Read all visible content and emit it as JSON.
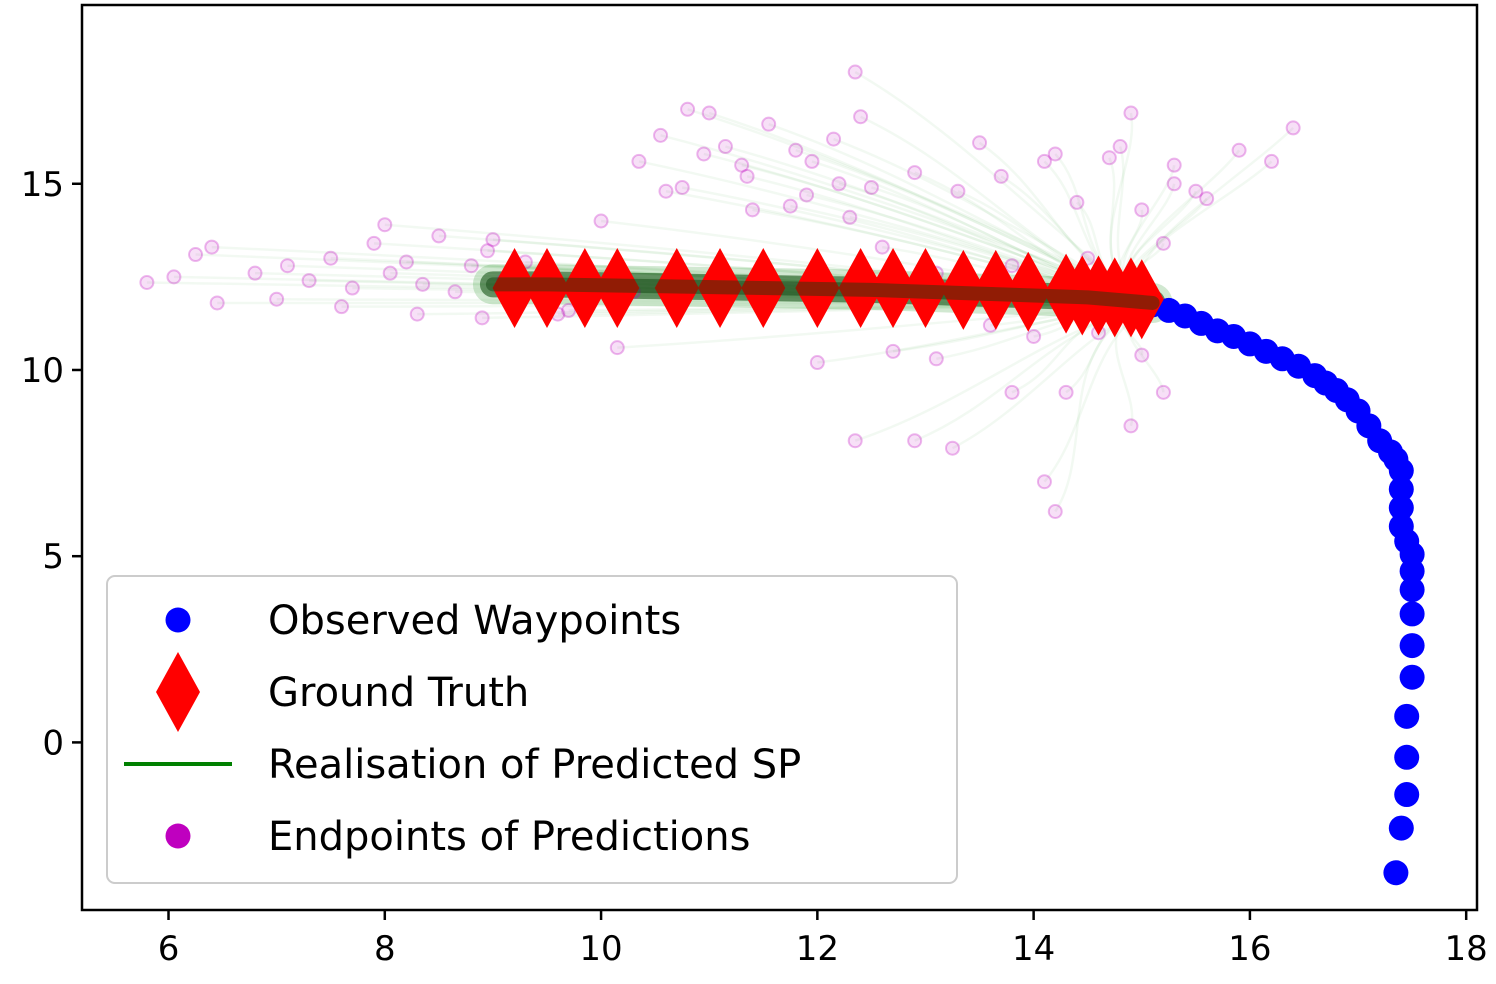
{
  "chart_data": {
    "type": "scatter",
    "title": "",
    "xlabel": "",
    "ylabel": "",
    "xlim": [
      5.2,
      18.1
    ],
    "ylim": [
      -4.5,
      19.8
    ],
    "xticks": [
      6,
      8,
      10,
      12,
      14,
      16,
      18
    ],
    "yticks": [
      0,
      5,
      10,
      15
    ],
    "grid": false,
    "legend_position": "lower-left",
    "colors": {
      "observed": "#0000ff",
      "ground_truth": "#ff0000",
      "prediction_line": "#008000",
      "endpoint": "#bf00bf"
    },
    "series": [
      {
        "name": "Observed Waypoints",
        "marker": "circle",
        "x": [
          17.35,
          17.4,
          17.45,
          17.45,
          17.45,
          17.5,
          17.5,
          17.5,
          17.5,
          17.5,
          17.5,
          17.45,
          17.4,
          17.4,
          17.4,
          17.4,
          17.35,
          17.3,
          17.2,
          17.1,
          17.0,
          16.9,
          16.8,
          16.7,
          16.6,
          16.45,
          16.3,
          16.15,
          16.0,
          15.85,
          15.7,
          15.55,
          15.4,
          15.25,
          15.1
        ],
        "y": [
          -3.5,
          -2.3,
          -1.4,
          -0.4,
          0.7,
          1.75,
          2.6,
          3.45,
          4.1,
          4.6,
          5.05,
          5.4,
          5.8,
          6.3,
          6.8,
          7.3,
          7.6,
          7.8,
          8.1,
          8.5,
          8.9,
          9.2,
          9.45,
          9.65,
          9.85,
          10.1,
          10.3,
          10.5,
          10.7,
          10.9,
          11.05,
          11.25,
          11.45,
          11.6,
          11.75
        ]
      },
      {
        "name": "Ground Truth",
        "marker": "diamond",
        "x": [
          9.2,
          9.5,
          9.85,
          10.15,
          10.7,
          11.1,
          11.5,
          12.0,
          12.4,
          12.7,
          13.0,
          13.35,
          13.65,
          13.95,
          14.3,
          14.45,
          14.6,
          14.75,
          14.9,
          15.0
        ],
        "y": [
          12.2,
          12.2,
          12.2,
          12.2,
          12.2,
          12.2,
          12.2,
          12.2,
          12.2,
          12.2,
          12.2,
          12.15,
          12.15,
          12.1,
          12.05,
          12.0,
          12.0,
          11.95,
          11.95,
          11.9
        ]
      },
      {
        "name": "Realisation of Predicted SP",
        "marker": "line",
        "x": [
          15.1,
          14.5,
          13.5,
          12.5,
          11.5,
          10.5,
          9.5,
          9.0
        ],
        "y": [
          11.8,
          11.95,
          12.05,
          12.15,
          12.2,
          12.25,
          12.3,
          12.3
        ]
      },
      {
        "name": "Endpoints of Predictions",
        "marker": "circle",
        "x": [
          5.8,
          6.05,
          6.25,
          6.45,
          6.8,
          7.1,
          7.3,
          7.5,
          7.7,
          7.9,
          8.05,
          8.2,
          8.35,
          8.5,
          8.65,
          8.8,
          8.95,
          9.1,
          9.3,
          9.5,
          9.7,
          9.9,
          10.15,
          7.0,
          7.6,
          8.3,
          8.9,
          9.6,
          10.3,
          6.4,
          8.0,
          9.0,
          10.0,
          10.35,
          10.55,
          10.75,
          10.95,
          11.15,
          11.35,
          11.55,
          11.75,
          11.95,
          12.15,
          12.35,
          10.6,
          11.0,
          11.4,
          11.8,
          12.2,
          10.8,
          11.3,
          11.9,
          12.5,
          12.9,
          13.3,
          13.7,
          14.1,
          14.4,
          14.7,
          15.0,
          15.3,
          15.6,
          15.9,
          16.4,
          13.1,
          13.8,
          14.5,
          15.2,
          15.5,
          13.5,
          14.2,
          14.9,
          12.4,
          12.7,
          13.1,
          13.6,
          14.0,
          14.6,
          15.0,
          12.0,
          12.35,
          12.9,
          13.25,
          13.8,
          14.3,
          14.9,
          15.2,
          14.1,
          14.2,
          12.3,
          12.6,
          14.8,
          15.3,
          16.2
        ],
        "y": [
          12.35,
          12.5,
          13.1,
          11.8,
          12.6,
          12.8,
          12.4,
          13.0,
          12.2,
          13.4,
          12.6,
          12.9,
          12.3,
          13.6,
          12.1,
          12.8,
          13.2,
          12.4,
          12.9,
          12.5,
          11.6,
          12.0,
          10.6,
          11.9,
          11.7,
          11.5,
          11.4,
          11.5,
          12.1,
          13.3,
          13.9,
          13.5,
          14.0,
          15.6,
          16.3,
          14.9,
          15.8,
          16.0,
          15.2,
          16.6,
          14.4,
          15.6,
          16.2,
          18.0,
          14.8,
          16.9,
          14.3,
          15.9,
          15.0,
          17.0,
          15.5,
          14.7,
          14.9,
          15.3,
          14.8,
          15.2,
          15.6,
          14.5,
          15.7,
          14.3,
          15.0,
          14.6,
          15.9,
          16.5,
          12.6,
          12.8,
          13.0,
          13.4,
          14.8,
          16.1,
          15.8,
          16.9,
          16.8,
          10.5,
          10.3,
          11.2,
          10.9,
          11.0,
          10.4,
          10.2,
          8.1,
          8.1,
          7.9,
          9.4,
          9.4,
          8.5,
          9.4,
          7.0,
          6.2,
          14.1,
          13.3,
          16.0,
          15.5,
          15.6
        ]
      }
    ]
  }
}
